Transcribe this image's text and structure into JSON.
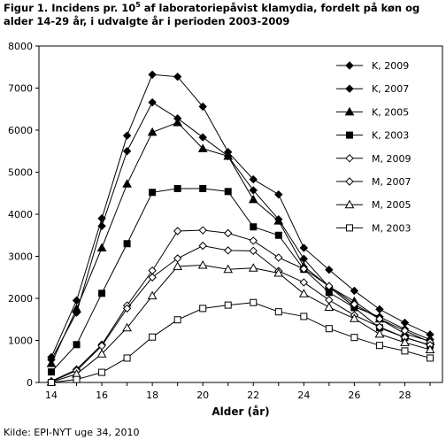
{
  "chart_data": {
    "type": "line",
    "title_before_sup": "Figur 1. Incidens pr. 10",
    "title_sup": "5",
    "title_after_sup": " af laboratoriepåvist klamydia, fordelt på køn og alder 14-29 år, i udvalgte år i perioden 2003-2009",
    "xlabel": "Alder (år)",
    "ylabel": "",
    "source": "Kilde: EPI-NYT uge 34, 2010",
    "x": [
      14,
      15,
      16,
      17,
      18,
      19,
      20,
      21,
      22,
      23,
      24,
      25,
      26,
      27,
      28,
      29
    ],
    "xlim": [
      14,
      29
    ],
    "ylim": [
      0,
      8000
    ],
    "xticks": [
      14,
      16,
      18,
      20,
      22,
      24,
      26,
      28
    ],
    "yticks": [
      0,
      1000,
      2000,
      3000,
      4000,
      5000,
      6000,
      7000,
      8000
    ],
    "grid": false,
    "legend_position": "right",
    "series": [
      {
        "name": "K, 2009",
        "marker": "diamond",
        "filled": true,
        "values": [
          600,
          1950,
          3900,
          5870,
          7320,
          7270,
          6560,
          5480,
          4830,
          4470,
          3200,
          2680,
          2180,
          1740,
          1420,
          1140
        ]
      },
      {
        "name": "K, 2007",
        "marker": "diamond",
        "filled": true,
        "values": [
          540,
          1660,
          3720,
          5500,
          6660,
          6280,
          5830,
          5380,
          4570,
          3880,
          2940,
          2270,
          1800,
          1560,
          1270,
          1020
        ]
      },
      {
        "name": "K, 2005",
        "marker": "triangle",
        "filled": true,
        "values": [
          450,
          1750,
          3200,
          4720,
          5950,
          6180,
          5560,
          5380,
          4350,
          3840,
          2760,
          2280,
          1930,
          1510,
          1160,
          980
        ]
      },
      {
        "name": "K, 2003",
        "marker": "square",
        "filled": true,
        "values": [
          250,
          900,
          2120,
          3300,
          4520,
          4610,
          4610,
          4540,
          3700,
          3500,
          2690,
          2140,
          1780,
          1300,
          1070,
          880
        ]
      },
      {
        "name": "M, 2009",
        "marker": "diamond",
        "filled": false,
        "values": [
          30,
          310,
          900,
          1830,
          2660,
          3600,
          3620,
          3550,
          3370,
          2970,
          2700,
          2290,
          1860,
          1510,
          1230,
          960
        ]
      },
      {
        "name": "M, 2007",
        "marker": "diamond",
        "filled": false,
        "values": [
          20,
          280,
          870,
          1760,
          2500,
          2950,
          3250,
          3140,
          3130,
          2650,
          2380,
          1960,
          1600,
          1320,
          1070,
          890
        ]
      },
      {
        "name": "M, 2005",
        "marker": "triangle",
        "filled": false,
        "values": [
          10,
          200,
          680,
          1300,
          2060,
          2760,
          2790,
          2690,
          2720,
          2600,
          2110,
          1790,
          1520,
          1150,
          950,
          780
        ]
      },
      {
        "name": "M, 2003",
        "marker": "square",
        "filled": false,
        "values": [
          0,
          70,
          240,
          580,
          1080,
          1490,
          1760,
          1840,
          1900,
          1680,
          1570,
          1280,
          1070,
          880,
          750,
          580
        ]
      }
    ]
  }
}
